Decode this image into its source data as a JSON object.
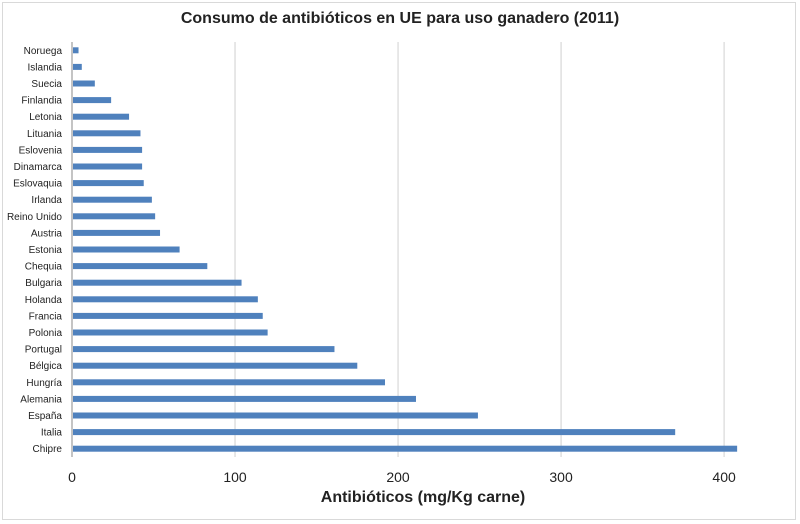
{
  "chart_data": {
    "type": "bar",
    "orientation": "horizontal",
    "title": "Consumo de antibióticos en UE  para uso ganadero (2011)",
    "xlabel": "Antibióticos (mg/Kg carne)",
    "ylabel": "",
    "xlim": [
      0,
      430
    ],
    "xticks": [
      0,
      100,
      200,
      300,
      400
    ],
    "grid": "vertical",
    "bar_color": "#4f81bd",
    "categories": [
      "Noruega",
      "Islandia",
      "Suecia",
      "Finlandia",
      "Letonia",
      "Lituania",
      "Eslovenia",
      "Dinamarca",
      "Eslovaquia",
      "Irlanda",
      "Reino Unido",
      "Austria",
      "Estonia",
      "Chequia",
      "Bulgaria",
      "Holanda",
      "Francia",
      "Polonia",
      "Portugal",
      "Bélgica",
      "Hungría",
      "Alemania",
      "España",
      "Italia",
      "Chipre"
    ],
    "values": [
      4,
      6,
      14,
      24,
      35,
      42,
      43,
      43,
      44,
      49,
      51,
      54,
      66,
      83,
      104,
      114,
      117,
      120,
      161,
      175,
      192,
      211,
      249,
      370,
      408
    ]
  }
}
